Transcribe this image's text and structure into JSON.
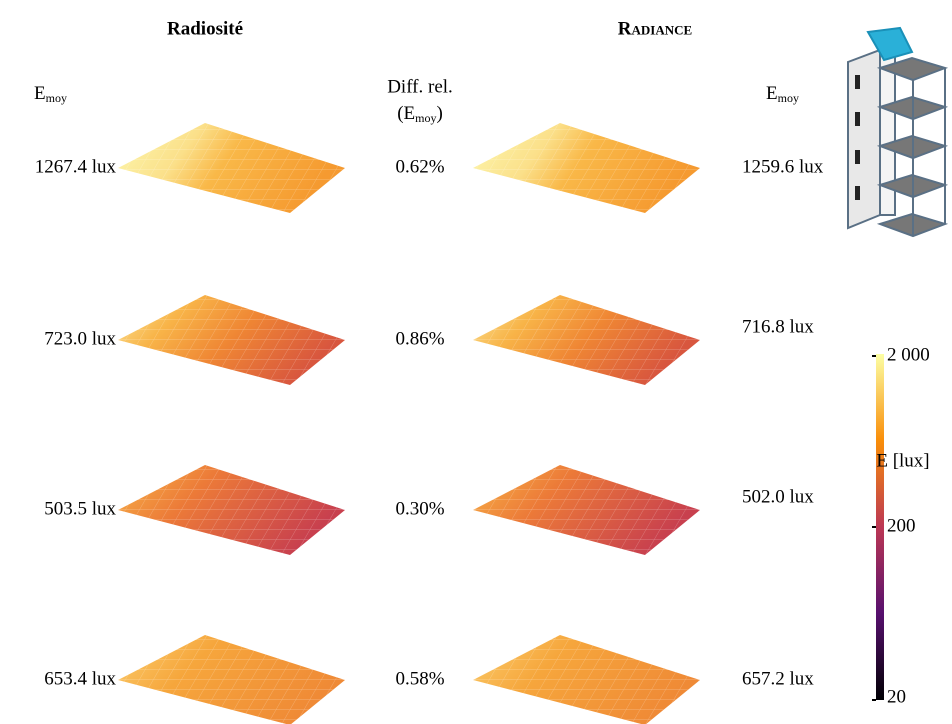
{
  "header": {
    "left_title": "Radiosité",
    "right_title": "Radiance",
    "left_col_label": "E",
    "left_col_sub": "moy",
    "mid_col_label": "Diff. rel.",
    "mid_col_label2_open": "(E",
    "mid_col_label2_sub": "moy",
    "mid_col_label2_close": ")",
    "right_col_label": "E",
    "right_col_sub": "moy"
  },
  "rows": [
    {
      "radiosite": "1267.4 lux",
      "diff": "0.62%",
      "radiance": "1259.6 lux"
    },
    {
      "radiosite": "723.0 lux",
      "diff": "0.86%",
      "radiance": "716.8 lux"
    },
    {
      "radiosite": "503.5 lux",
      "diff": "0.30%",
      "radiance": "502.0 lux"
    },
    {
      "radiosite": "653.4 lux",
      "diff": "0.58%",
      "radiance": "657.2 lux"
    }
  ],
  "colorbar": {
    "title": "E [lux]",
    "lim": [
      20,
      2000
    ],
    "log": true,
    "ticks": [
      {
        "value": 2000,
        "label": "2 000"
      },
      200,
      20
    ]
  }
}
